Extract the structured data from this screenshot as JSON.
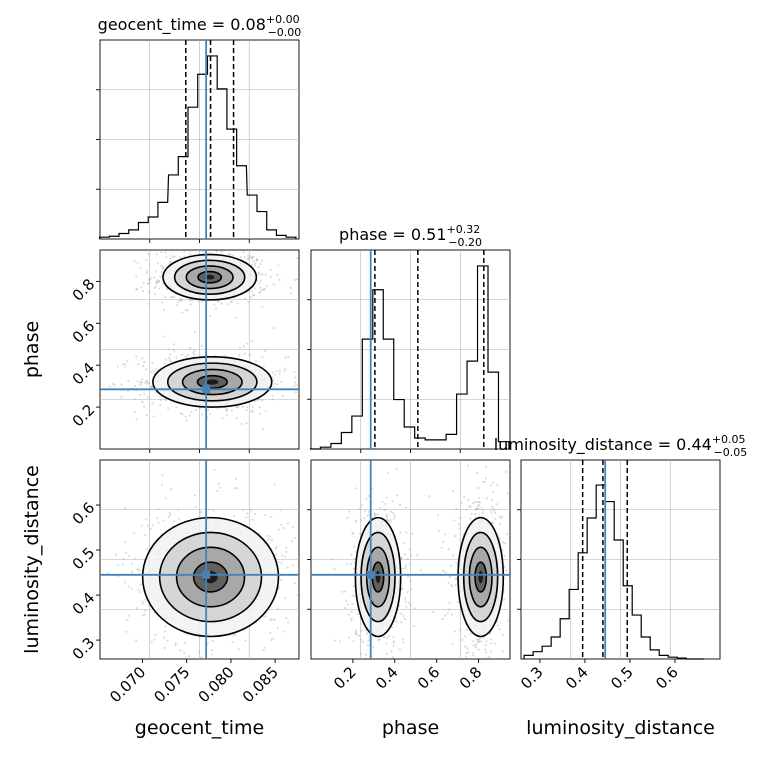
{
  "chart_data": {
    "type": "corner",
    "parameters": [
      "geocent_time",
      "phase",
      "luminosity_distance"
    ],
    "truths": [
      0.0772,
      0.285,
      0.445
    ],
    "truth_color": "#4682b4",
    "ranges": [
      [
        0.0652,
        0.0877
      ],
      [
        0.0,
        0.95
      ],
      [
        0.258,
        0.7
      ]
    ],
    "diagonal": [
      {
        "param": "geocent_time",
        "title": "geocent_time = 0.08",
        "sup": "+0.00",
        "sub": "−0.00",
        "quantiles": [
          0.0749,
          0.0777,
          0.0803
        ],
        "bins_x": [
          0.0657,
          0.0668,
          0.0679,
          0.069,
          0.0701,
          0.0712,
          0.0723,
          0.0735,
          0.0746,
          0.0757,
          0.0768,
          0.0779,
          0.079,
          0.0801,
          0.0812,
          0.0824,
          0.0835,
          0.0846,
          0.0857,
          0.0868
        ],
        "bins_y": [
          0.01,
          0.015,
          0.03,
          0.05,
          0.09,
          0.12,
          0.2,
          0.35,
          0.45,
          0.72,
          0.9,
          1.0,
          0.82,
          0.6,
          0.4,
          0.24,
          0.15,
          0.05,
          0.02,
          0.01
        ],
        "xticks": [],
        "yticks": []
      },
      {
        "param": "phase",
        "title": "phase = 0.51",
        "sup": "+0.32",
        "sub": "−0.20",
        "quantiles": [
          0.305,
          0.51,
          0.825
        ],
        "bins_x": [
          0.02,
          0.07,
          0.12,
          0.17,
          0.22,
          0.27,
          0.32,
          0.37,
          0.42,
          0.47,
          0.52,
          0.57,
          0.62,
          0.67,
          0.72,
          0.77,
          0.82,
          0.87,
          0.92
        ],
        "bins_y": [
          0.0,
          0.01,
          0.03,
          0.09,
          0.18,
          0.6,
          0.87,
          0.6,
          0.27,
          0.12,
          0.06,
          0.05,
          0.05,
          0.08,
          0.3,
          0.48,
          1.0,
          0.42,
          0.04
        ],
        "xticks": [],
        "yticks": []
      },
      {
        "param": "luminosity_distance",
        "title": "luminosity_distance = 0.44",
        "sup": "+0.05",
        "sub": "−0.05",
        "quantiles": [
          0.395,
          0.44,
          0.494
        ],
        "bins_x": [
          0.275,
          0.295,
          0.315,
          0.335,
          0.355,
          0.375,
          0.395,
          0.415,
          0.435,
          0.455,
          0.475,
          0.495,
          0.515,
          0.535,
          0.555,
          0.575,
          0.595,
          0.615,
          0.635,
          0.655
        ],
        "bins_y": [
          0.02,
          0.04,
          0.07,
          0.12,
          0.22,
          0.38,
          0.58,
          0.77,
          0.95,
          0.86,
          0.65,
          0.4,
          0.24,
          0.12,
          0.05,
          0.02,
          0.01,
          0.005,
          0.0,
          0.0
        ],
        "xticks": [
          0.3,
          0.4,
          0.5,
          0.6
        ],
        "xticklabels": [
          "0.3",
          "0.4",
          "0.5",
          "0.6"
        ],
        "xlabel": "luminosity_distance"
      }
    ],
    "pairs": [
      {
        "x": "geocent_time",
        "y": "phase",
        "modes": [
          [
            0.0776,
            0.82,
            0.0022,
            0.045
          ],
          [
            0.0779,
            0.32,
            0.0028,
            0.05
          ]
        ],
        "yticks": [
          0.2,
          0.4,
          0.6,
          0.8
        ],
        "yticklabels": [
          "0.2",
          "0.4",
          "0.6",
          "0.8"
        ],
        "ylabel": "phase"
      },
      {
        "x": "geocent_time",
        "y": "luminosity_distance",
        "modes": [
          [
            0.0777,
            0.44,
            0.0032,
            0.055
          ]
        ],
        "xticks": [
          0.07,
          0.075,
          0.08,
          0.085
        ],
        "xticklabels": [
          "0.070",
          "0.075",
          "0.080",
          "0.085"
        ],
        "xlabel": "geocent_time",
        "yticks": [
          0.3,
          0.4,
          0.5,
          0.6
        ],
        "yticklabels": [
          "0.3",
          "0.4",
          "0.5",
          "0.6"
        ],
        "ylabel": "luminosity_distance"
      },
      {
        "x": "phase",
        "y": "luminosity_distance",
        "modes": [
          [
            0.32,
            0.44,
            0.045,
            0.055
          ],
          [
            0.81,
            0.44,
            0.045,
            0.055
          ]
        ],
        "xticks": [
          0.2,
          0.4,
          0.6,
          0.8
        ],
        "xticklabels": [
          "0.2",
          "0.4",
          "0.6",
          "0.8"
        ],
        "xlabel": "phase"
      }
    ],
    "grid": true
  }
}
